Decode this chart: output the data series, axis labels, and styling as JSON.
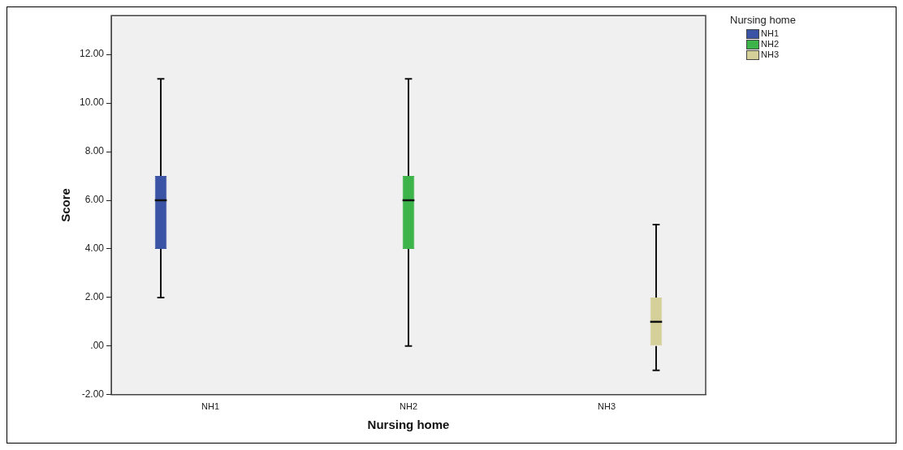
{
  "chart_data": {
    "type": "box",
    "xlabel": "Nursing home",
    "ylabel": "Score",
    "legend_title": "Nursing home",
    "legend": "top right",
    "grid": false,
    "categories": [
      "NH1",
      "NH2",
      "NH3"
    ],
    "ylim": [
      -2,
      13.6
    ],
    "yticks": [
      {
        "value": -2,
        "label": "-2.00"
      },
      {
        "value": 0,
        "label": ".00"
      },
      {
        "value": 2,
        "label": "2.00"
      },
      {
        "value": 4,
        "label": "4.00"
      },
      {
        "value": 6,
        "label": "6.00"
      },
      {
        "value": 8,
        "label": "8.00"
      },
      {
        "value": 10,
        "label": "10.00"
      },
      {
        "value": 12,
        "label": "12.00"
      }
    ],
    "series": [
      {
        "name": "NH1",
        "color": "#3a53a4",
        "boxes": [
          {
            "low": 2,
            "q1": 4,
            "median": 6,
            "q3": 7,
            "high": 11
          },
          null,
          null
        ]
      },
      {
        "name": "NH2",
        "color": "#3cb44a",
        "boxes": [
          null,
          {
            "low": 0,
            "q1": 4,
            "median": 6,
            "q3": 7,
            "high": 11
          },
          null
        ]
      },
      {
        "name": "NH3",
        "color": "#d5d09a",
        "boxes": [
          null,
          null,
          {
            "low": -1,
            "q1": 0,
            "median": 1,
            "q3": 2,
            "high": 5
          }
        ]
      }
    ]
  }
}
